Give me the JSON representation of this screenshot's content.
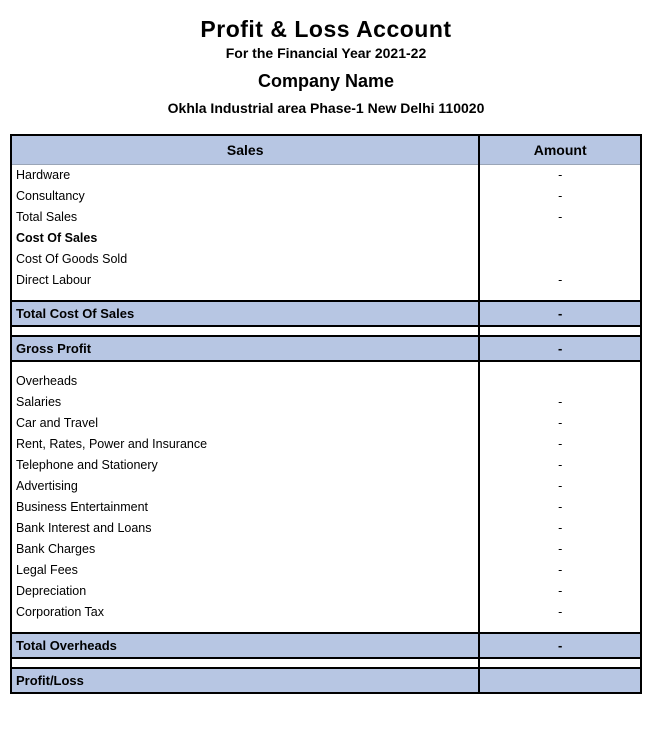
{
  "header": {
    "title": "Profit & Loss Account",
    "subtitle": "For the Financial Year 2021-22",
    "company": "Company Name",
    "address": "Okhla Industrial area Phase-1 New Delhi 110020"
  },
  "columns": {
    "sales": "Sales",
    "amount": "Amount"
  },
  "rows": {
    "hardware": {
      "label": "Hardware",
      "amount": "-"
    },
    "consultancy": {
      "label": "Consultancy",
      "amount": "-"
    },
    "total_sales": {
      "label": "Total Sales",
      "amount": "-"
    },
    "cost_of_sales": {
      "label": "Cost Of Sales",
      "amount": ""
    },
    "cogs": {
      "label": "Cost Of Goods Sold",
      "amount": ""
    },
    "direct_labour": {
      "label": "Direct Labour",
      "amount": "-"
    },
    "total_cost_of_sales": {
      "label": "Total Cost Of Sales",
      "amount": "-"
    },
    "gross_profit": {
      "label": "Gross Profit",
      "amount": "-"
    },
    "overheads": {
      "label": "Overheads",
      "amount": ""
    },
    "salaries": {
      "label": "Salaries",
      "amount": "-"
    },
    "car_travel": {
      "label": "Car and Travel",
      "amount": "-"
    },
    "rent": {
      "label": "Rent, Rates, Power and Insurance",
      "amount": "-"
    },
    "telephone": {
      "label": "Telephone and Stationery",
      "amount": "-"
    },
    "advertising": {
      "label": "Advertising",
      "amount": "-"
    },
    "entertainment": {
      "label": "Business Entertainment",
      "amount": "-"
    },
    "bank_interest": {
      "label": "Bank Interest and Loans",
      "amount": "-"
    },
    "bank_charges": {
      "label": "Bank Charges",
      "amount": "-"
    },
    "legal_fees": {
      "label": "Legal Fees",
      "amount": "-"
    },
    "depreciation": {
      "label": "Depreciation",
      "amount": "-"
    },
    "corp_tax": {
      "label": "Corporation Tax",
      "amount": "-"
    },
    "total_overheads": {
      "label": "Total Overheads",
      "amount": "-"
    },
    "profit_loss": {
      "label": "Profit/Loss",
      "amount": ""
    }
  },
  "colors": {
    "section_bg": "#b7c6e3",
    "border": "#000000",
    "background": "#ffffff"
  }
}
